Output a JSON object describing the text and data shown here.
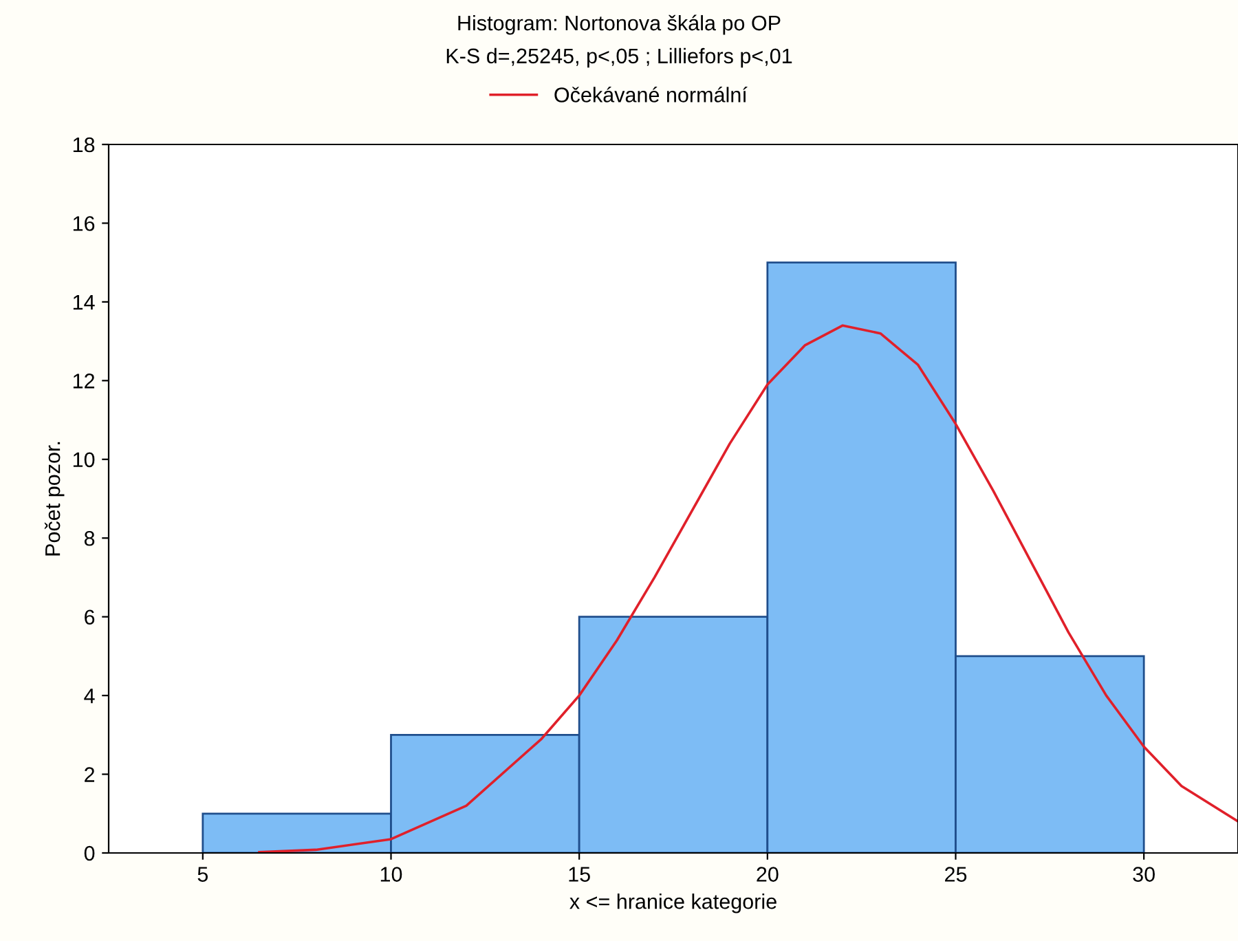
{
  "chart_data": {
    "type": "histogram",
    "title": "Histogram: Nortonova škála po OP",
    "subtitle": "K-S d=,25245, p<,05 ; Lilliefors p<,01",
    "xlabel": "x <= hranice kategorie",
    "ylabel": "Počet pozor.",
    "bins": [
      5,
      10,
      15,
      20,
      25,
      30
    ],
    "values": [
      1,
      3,
      6,
      15,
      5
    ],
    "color": "#7dbcf5",
    "series": [
      {
        "name": "Očekávané normální",
        "type": "line",
        "color": "#e0202a",
        "x": [
          6.5,
          8,
          10,
          12,
          14,
          15,
          16,
          17,
          18,
          19,
          20,
          21,
          22,
          23,
          24,
          25,
          26,
          27,
          28,
          29,
          30,
          31,
          32.5
        ],
        "values": [
          0.02,
          0.08,
          0.35,
          1.2,
          2.9,
          4.0,
          5.4,
          7.0,
          8.7,
          10.4,
          11.9,
          12.9,
          13.4,
          13.2,
          12.4,
          10.9,
          9.2,
          7.4,
          5.6,
          4.0,
          2.7,
          1.7,
          0.8
        ]
      }
    ],
    "xlim": [
      2.5,
      32.5
    ],
    "xticks": [
      5,
      10,
      15,
      20,
      25,
      30
    ],
    "ylim": [
      0,
      18
    ],
    "yticks": [
      0,
      2,
      4,
      6,
      8,
      10,
      12,
      14,
      16,
      18
    ],
    "grid": false,
    "legend": "top",
    "marker": "none",
    "line_style": "solid"
  }
}
